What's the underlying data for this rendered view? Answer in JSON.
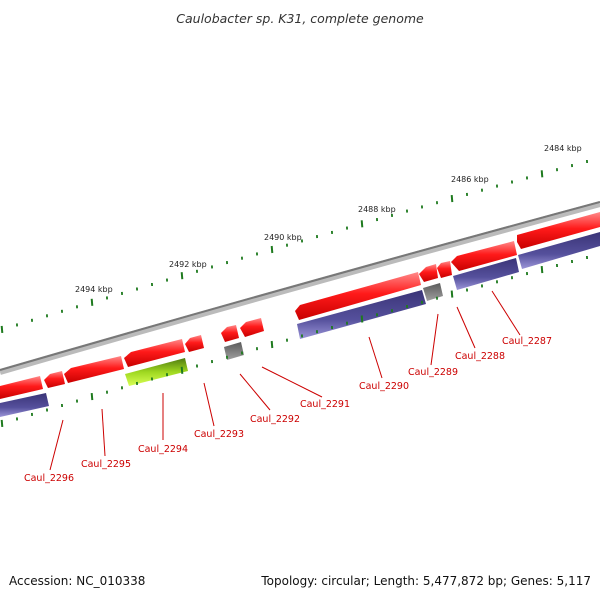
{
  "title": "Caulobacter sp. K31, complete genome",
  "kbp_labels": [
    "2484 kbp",
    "2486 kbp",
    "2488 kbp",
    "2490 kbp",
    "2492 kbp",
    "2494 kbp"
  ],
  "genes": [
    {
      "name": "Caul_2287",
      "strand": "minus",
      "color": "red+blue"
    },
    {
      "name": "Caul_2288",
      "strand": "minus",
      "color": "red+blue"
    },
    {
      "name": "Caul_2289",
      "strand": "minus",
      "color": "red+grey"
    },
    {
      "name": "Caul_2290",
      "strand": "minus",
      "color": "red+blue"
    },
    {
      "name": "Caul_2291",
      "strand": "minus",
      "color": "red"
    },
    {
      "name": "Caul_2292",
      "strand": "minus",
      "color": "red+grey"
    },
    {
      "name": "Caul_2293",
      "strand": "minus",
      "color": "red"
    },
    {
      "name": "Caul_2294",
      "strand": "plus",
      "color": "green"
    },
    {
      "name": "Caul_2295",
      "strand": "minus",
      "color": "red"
    },
    {
      "name": "Caul_2296",
      "strand": "minus",
      "color": "red+blue"
    }
  ],
  "colors": {
    "gene_red": "#ff0000",
    "cog_blue": "#4b4592",
    "grey_feature": "#777777",
    "green_feature": "#8fc21b",
    "backbone": "#888888",
    "tick_green": "#1e7a1e",
    "label_red": "#cc0000"
  },
  "footer": {
    "accession": "Accession: NC_010338",
    "stats": "Topology: circular; Length: 5,477,872 bp; Genes: 5,117"
  }
}
